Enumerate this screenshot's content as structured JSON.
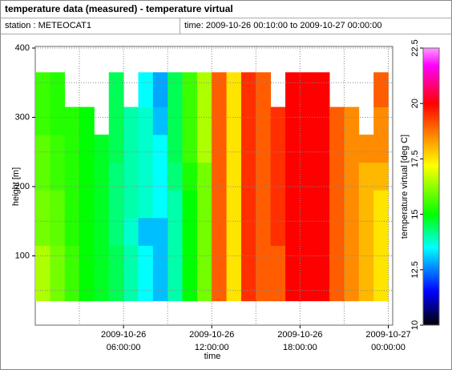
{
  "header": {
    "title": "temperature data (measured) - temperature virtual",
    "station": "station : METEOCAT1",
    "time_range": "time: 2009-10-26 00:10:00 to 2009-10-27 00:00:00"
  },
  "chart_data": {
    "type": "heatmap",
    "xlabel": "time",
    "ylabel": "height [m]",
    "zlabel": "temperature virtual [deg C]",
    "xlim": [
      0,
      24.3
    ],
    "ylim": [
      0,
      400
    ],
    "zlim": [
      10,
      22.5
    ],
    "xticks": [
      {
        "value": 6,
        "label": "2009-10-26 06:00:00"
      },
      {
        "value": 12,
        "label": "2009-10-26 12:00:00"
      },
      {
        "value": 18,
        "label": "2009-10-26 18:00:00"
      },
      {
        "value": 24,
        "label": "2009-10-27 00:00:00"
      }
    ],
    "x_minor_ticks": [
      3,
      9,
      15,
      21
    ],
    "yticks": [
      100,
      200,
      300,
      400
    ],
    "y_minor_ticks": [
      50,
      150,
      250,
      350
    ],
    "zticks": [
      10,
      12.5,
      15,
      17.5,
      20,
      22.5
    ],
    "grid": true,
    "colorscale": [
      [
        10,
        "#000000"
      ],
      [
        11.5,
        "#0000ff"
      ],
      [
        13.5,
        "#00ffff"
      ],
      [
        15,
        "#00ff00"
      ],
      [
        17.2,
        "#ffff00"
      ],
      [
        18.5,
        "#ff8c00"
      ],
      [
        20,
        "#ff0000"
      ],
      [
        21.7,
        "#ff00ff"
      ],
      [
        22.5,
        "#ff99ff"
      ]
    ],
    "x_edges": [
      0,
      1,
      2,
      3,
      4,
      5,
      6,
      7,
      8,
      9,
      10,
      11,
      12,
      13,
      14,
      15,
      16,
      17,
      18,
      19,
      20,
      21,
      22,
      23,
      24
    ],
    "y_edges": [
      35,
      75,
      115,
      155,
      195,
      235,
      275,
      315,
      365
    ],
    "z": [
      [
        16.5,
        16,
        15.5,
        15,
        14.8,
        14.5,
        14,
        13.5,
        13,
        14,
        15,
        16,
        19,
        17.5,
        19.5,
        19,
        19,
        20,
        20,
        20,
        19,
        18.5,
        18,
        17.5
      ],
      [
        16.5,
        16,
        15.5,
        15,
        14.8,
        14.5,
        14,
        13.5,
        13,
        14,
        15,
        16,
        19,
        17.5,
        19.5,
        19,
        19,
        20,
        20,
        20,
        19,
        18.5,
        18,
        17.5
      ],
      [
        16,
        15.8,
        15.3,
        15,
        14.8,
        14.3,
        13.8,
        13,
        13,
        14,
        15,
        16,
        19,
        17.5,
        19.5,
        19,
        19.5,
        20,
        20,
        20,
        19,
        18.5,
        18,
        17.5
      ],
      [
        16,
        15.8,
        15.3,
        15,
        14.8,
        14.3,
        14,
        13.8,
        13.5,
        14,
        15,
        16,
        19,
        17.5,
        19.5,
        19,
        19.5,
        20,
        20,
        20,
        19,
        18.5,
        18,
        17.5
      ],
      [
        15.8,
        15.5,
        15.3,
        15,
        14.8,
        14.3,
        14,
        13.8,
        13.5,
        14.3,
        15.2,
        16,
        19,
        17.5,
        19.5,
        19,
        19.5,
        20,
        20,
        20,
        19,
        18.5,
        18,
        18
      ],
      [
        15.8,
        15.5,
        15.3,
        15,
        14.8,
        14.5,
        14,
        13.8,
        13.5,
        14.5,
        15.5,
        16.5,
        19,
        17.5,
        19.5,
        19,
        19.5,
        20,
        20,
        20,
        19,
        18.5,
        18.5,
        18.5
      ],
      [
        15.5,
        15.3,
        15.3,
        15,
        null,
        14.5,
        14,
        13.8,
        13,
        14.5,
        15.5,
        16.5,
        19,
        17.5,
        19.5,
        19,
        19.5,
        20,
        20,
        20,
        19,
        18.5,
        null,
        18.5
      ],
      [
        15.5,
        15.3,
        null,
        null,
        null,
        14.5,
        null,
        13.5,
        12.8,
        14.5,
        15.5,
        16.5,
        19,
        17.5,
        19.5,
        19,
        null,
        20,
        20,
        20,
        null,
        null,
        null,
        19
      ]
    ]
  }
}
